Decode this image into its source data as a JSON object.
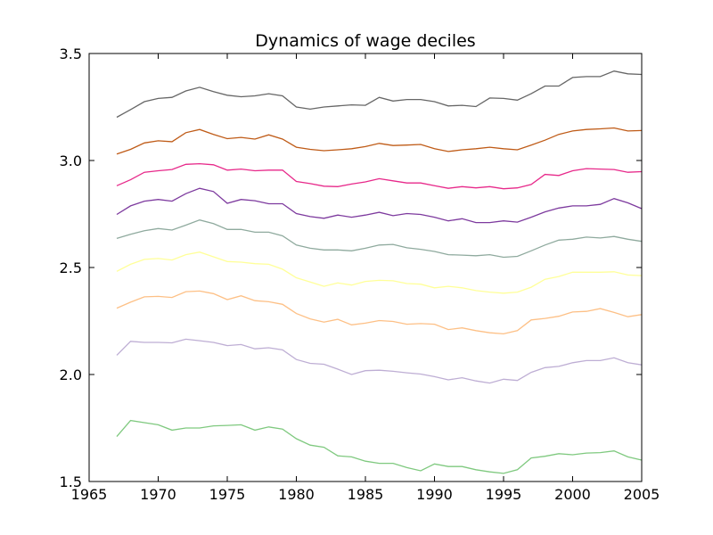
{
  "chart_data": {
    "type": "line",
    "title": "Dynamics of wage deciles",
    "xlabel": "",
    "ylabel": "",
    "xlim": [
      1965,
      2005
    ],
    "ylim": [
      1.5,
      3.5
    ],
    "xticks": [
      "1965",
      "1970",
      "1975",
      "1980",
      "1985",
      "1990",
      "1995",
      "2000",
      "2005"
    ],
    "yticks": [
      "1.5",
      "2.0",
      "2.5",
      "3.0",
      "3.5"
    ],
    "grid": false,
    "legend": "none",
    "x": [
      1967,
      1968,
      1969,
      1970,
      1971,
      1972,
      1973,
      1974,
      1975,
      1976,
      1977,
      1978,
      1979,
      1980,
      1981,
      1982,
      1983,
      1984,
      1985,
      1986,
      1987,
      1988,
      1989,
      1990,
      1991,
      1992,
      1993,
      1994,
      1995,
      1996,
      1997,
      1998,
      1999,
      2000,
      2001,
      2002,
      2003,
      2004,
      2005
    ],
    "series": [
      {
        "color": "#7fc97f",
        "values": [
          1.71,
          1.785,
          1.775,
          1.765,
          1.74,
          1.75,
          1.75,
          1.76,
          1.762,
          1.765,
          1.74,
          1.755,
          1.745,
          1.7,
          1.67,
          1.66,
          1.62,
          1.615,
          1.595,
          1.585,
          1.585,
          1.565,
          1.55,
          1.582,
          1.57,
          1.57,
          1.555,
          1.545,
          1.538,
          1.555,
          1.61,
          1.618,
          1.63,
          1.625,
          1.633,
          1.635,
          1.643,
          1.615,
          1.6
        ]
      },
      {
        "color": "#beaed4",
        "values": [
          2.09,
          2.155,
          2.15,
          2.15,
          2.148,
          2.165,
          2.158,
          2.15,
          2.135,
          2.14,
          2.12,
          2.125,
          2.115,
          2.07,
          2.052,
          2.048,
          2.025,
          2.0,
          2.018,
          2.02,
          2.015,
          2.008,
          2.002,
          1.99,
          1.975,
          1.985,
          1.97,
          1.96,
          1.978,
          1.972,
          2.01,
          2.032,
          2.038,
          2.055,
          2.065,
          2.065,
          2.078,
          2.055,
          2.045
        ]
      },
      {
        "color": "#fdc086",
        "values": [
          2.31,
          2.338,
          2.363,
          2.365,
          2.36,
          2.387,
          2.39,
          2.378,
          2.35,
          2.368,
          2.345,
          2.34,
          2.328,
          2.285,
          2.26,
          2.245,
          2.258,
          2.232,
          2.24,
          2.252,
          2.248,
          2.235,
          2.238,
          2.235,
          2.21,
          2.218,
          2.205,
          2.195,
          2.19,
          2.205,
          2.255,
          2.262,
          2.272,
          2.292,
          2.295,
          2.308,
          2.29,
          2.27,
          2.28
        ]
      },
      {
        "color": "#ffff99",
        "values": [
          2.482,
          2.515,
          2.538,
          2.542,
          2.535,
          2.56,
          2.572,
          2.55,
          2.528,
          2.525,
          2.518,
          2.515,
          2.492,
          2.452,
          2.432,
          2.412,
          2.428,
          2.418,
          2.435,
          2.44,
          2.438,
          2.425,
          2.422,
          2.405,
          2.412,
          2.405,
          2.392,
          2.385,
          2.38,
          2.385,
          2.408,
          2.445,
          2.458,
          2.478,
          2.478,
          2.478,
          2.48,
          2.465,
          2.462
        ]
      },
      {
        "color": "#8faa9e",
        "values": [
          2.636,
          2.655,
          2.672,
          2.682,
          2.675,
          2.698,
          2.722,
          2.705,
          2.678,
          2.678,
          2.665,
          2.665,
          2.648,
          2.605,
          2.59,
          2.582,
          2.582,
          2.578,
          2.59,
          2.605,
          2.608,
          2.592,
          2.585,
          2.575,
          2.56,
          2.558,
          2.555,
          2.56,
          2.548,
          2.552,
          2.578,
          2.605,
          2.628,
          2.632,
          2.642,
          2.638,
          2.645,
          2.632,
          2.622
        ]
      },
      {
        "color": "#7d3a9e",
        "values": [
          2.748,
          2.788,
          2.81,
          2.818,
          2.81,
          2.845,
          2.87,
          2.855,
          2.8,
          2.818,
          2.812,
          2.798,
          2.798,
          2.752,
          2.738,
          2.73,
          2.745,
          2.735,
          2.745,
          2.758,
          2.742,
          2.752,
          2.748,
          2.735,
          2.718,
          2.728,
          2.71,
          2.71,
          2.718,
          2.712,
          2.735,
          2.76,
          2.778,
          2.788,
          2.788,
          2.795,
          2.822,
          2.802,
          2.775
        ]
      },
      {
        "color": "#e7298a",
        "values": [
          2.882,
          2.91,
          2.945,
          2.952,
          2.958,
          2.982,
          2.985,
          2.98,
          2.955,
          2.96,
          2.952,
          2.955,
          2.955,
          2.902,
          2.892,
          2.88,
          2.878,
          2.89,
          2.9,
          2.915,
          2.905,
          2.895,
          2.895,
          2.882,
          2.87,
          2.878,
          2.872,
          2.878,
          2.868,
          2.872,
          2.888,
          2.935,
          2.93,
          2.952,
          2.962,
          2.96,
          2.958,
          2.945,
          2.948
        ]
      },
      {
        "color": "#bf5b17",
        "values": [
          3.03,
          3.052,
          3.082,
          3.092,
          3.088,
          3.13,
          3.145,
          3.122,
          3.102,
          3.108,
          3.1,
          3.12,
          3.1,
          3.062,
          3.052,
          3.046,
          3.05,
          3.055,
          3.065,
          3.08,
          3.07,
          3.072,
          3.075,
          3.055,
          3.042,
          3.05,
          3.055,
          3.062,
          3.055,
          3.05,
          3.072,
          3.095,
          3.122,
          3.138,
          3.145,
          3.148,
          3.152,
          3.138,
          3.14
        ]
      },
      {
        "color": "#666666",
        "values": [
          3.202,
          3.238,
          3.275,
          3.29,
          3.295,
          3.325,
          3.342,
          3.322,
          3.305,
          3.298,
          3.302,
          3.312,
          3.302,
          3.25,
          3.24,
          3.25,
          3.255,
          3.26,
          3.258,
          3.295,
          3.278,
          3.285,
          3.285,
          3.275,
          3.255,
          3.258,
          3.252,
          3.292,
          3.29,
          3.282,
          3.312,
          3.348,
          3.348,
          3.388,
          3.392,
          3.392,
          3.418,
          3.405,
          3.402
        ]
      }
    ]
  }
}
